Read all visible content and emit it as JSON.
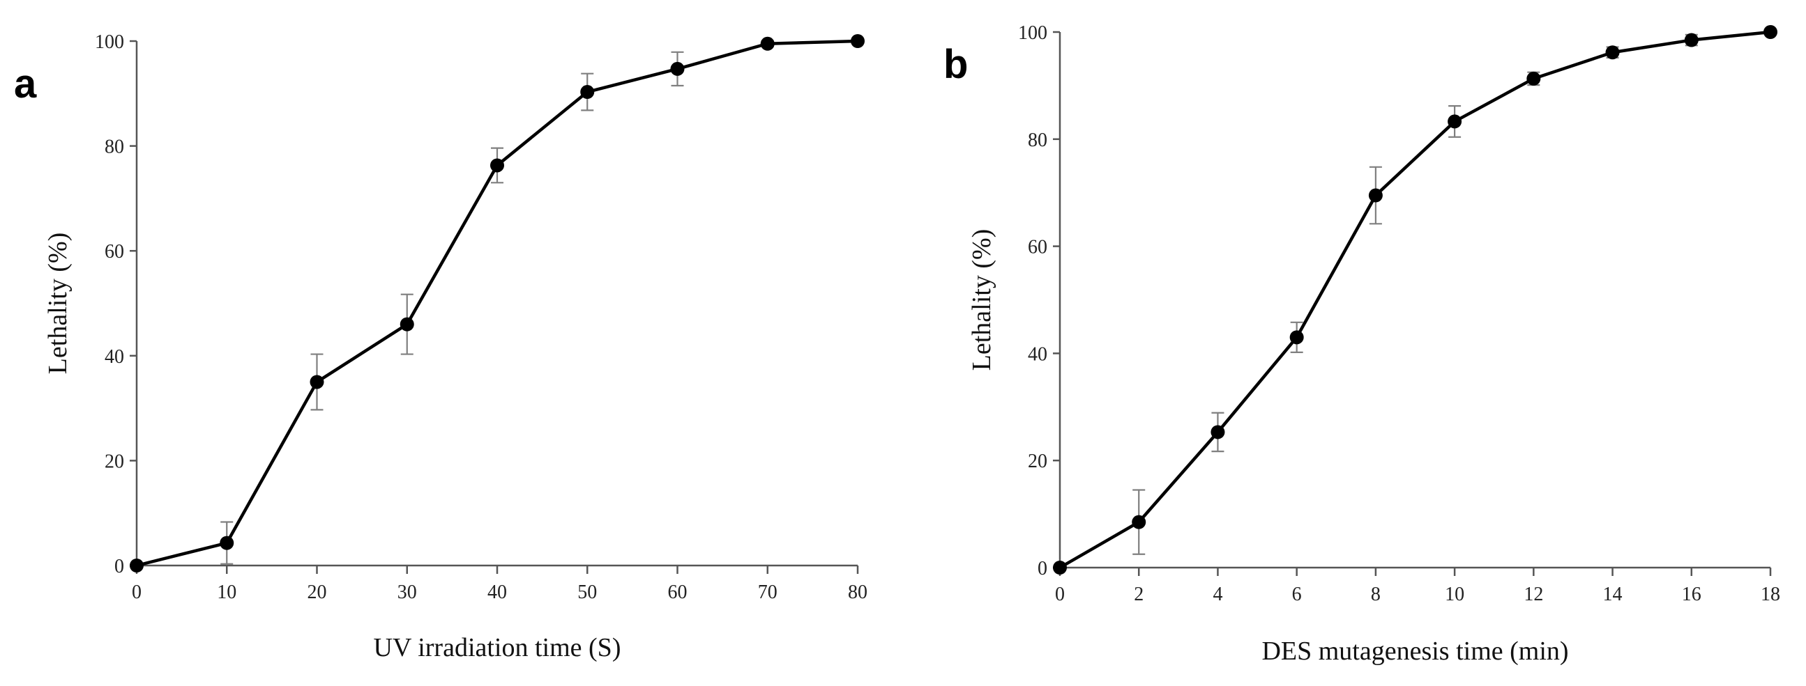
{
  "chart_data": [
    {
      "type": "line",
      "panel_label": "a",
      "title": "",
      "xlabel": "UV irradiation time (S)",
      "ylabel": "Lethality (%)",
      "xlim": [
        0,
        80
      ],
      "ylim": [
        0,
        100
      ],
      "x_ticks": [
        0,
        10,
        20,
        30,
        40,
        50,
        60,
        70,
        80
      ],
      "y_ticks": [
        0,
        20,
        40,
        60,
        80,
        100
      ],
      "grid": false,
      "legend": "none",
      "series": [
        {
          "name": "Lethality",
          "x": [
            0,
            10,
            20,
            30,
            40,
            50,
            60,
            70,
            80
          ],
          "values": [
            0,
            4.3,
            35.0,
            46.0,
            76.3,
            90.3,
            94.7,
            99.5,
            100
          ],
          "error": [
            0,
            4.0,
            5.3,
            5.7,
            3.3,
            3.5,
            3.2,
            0.5,
            0
          ]
        }
      ]
    },
    {
      "type": "line",
      "panel_label": "b",
      "title": "",
      "xlabel": "DES mutagenesis time (min)",
      "ylabel": "Lethality (%)",
      "xlim": [
        0,
        18
      ],
      "ylim": [
        0,
        100
      ],
      "x_ticks": [
        0,
        2,
        4,
        6,
        8,
        10,
        12,
        14,
        16,
        18
      ],
      "y_ticks": [
        0,
        20,
        40,
        60,
        80,
        100
      ],
      "grid": false,
      "legend": "none",
      "series": [
        {
          "name": "Lethality",
          "x": [
            0,
            2,
            4,
            6,
            8,
            10,
            12,
            14,
            16,
            18
          ],
          "values": [
            0,
            8.5,
            25.3,
            43.0,
            69.5,
            83.3,
            91.3,
            96.2,
            98.5,
            100
          ],
          "error": [
            0,
            6.0,
            3.6,
            2.8,
            5.3,
            2.9,
            1.2,
            1.0,
            1.0,
            0
          ]
        }
      ]
    }
  ]
}
